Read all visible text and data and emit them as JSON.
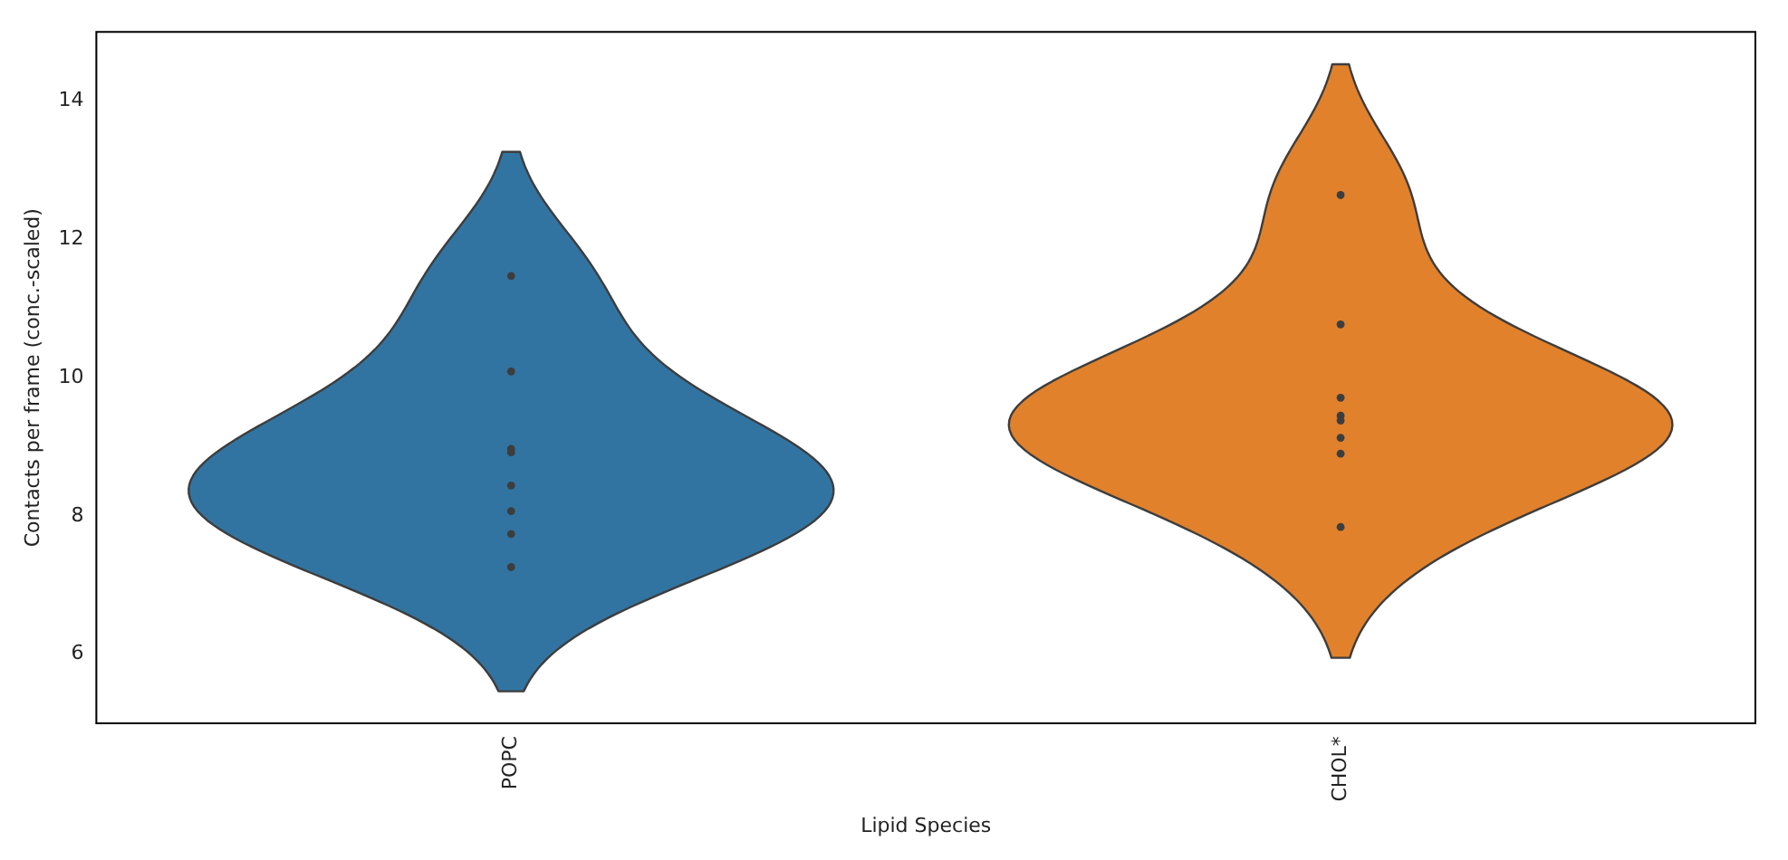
{
  "chart_data": {
    "type": "scatter",
    "xlabel": "Lipid Species",
    "ylabel": "Contacts per frame (conc.-scaled)",
    "categories": [
      "POPC",
      "CHOL*"
    ],
    "colors": [
      "#3274a1",
      "#e1812c"
    ],
    "ylim": [
      5.0,
      15.0
    ],
    "yticks": [
      6,
      8,
      10,
      12,
      14
    ],
    "grid": false,
    "legend": false,
    "marker": "circle",
    "series": [
      {
        "color": "#3d3d3d",
        "x": [
          "POPC",
          "POPC",
          "POPC",
          "POPC",
          "POPC",
          "POPC",
          "POPC",
          "POPC"
        ],
        "values": [
          11.47,
          10.09,
          8.97,
          8.92,
          8.44,
          8.07,
          7.74,
          7.26
        ]
      },
      {
        "color": "#3d3d3d",
        "x": [
          "CHOL*",
          "CHOL*",
          "CHOL*",
          "CHOL*",
          "CHOL*",
          "CHOL*",
          "CHOL*",
          "CHOL*"
        ],
        "values": [
          12.64,
          10.77,
          9.71,
          9.45,
          9.38,
          9.13,
          8.9,
          7.84
        ]
      }
    ]
  }
}
